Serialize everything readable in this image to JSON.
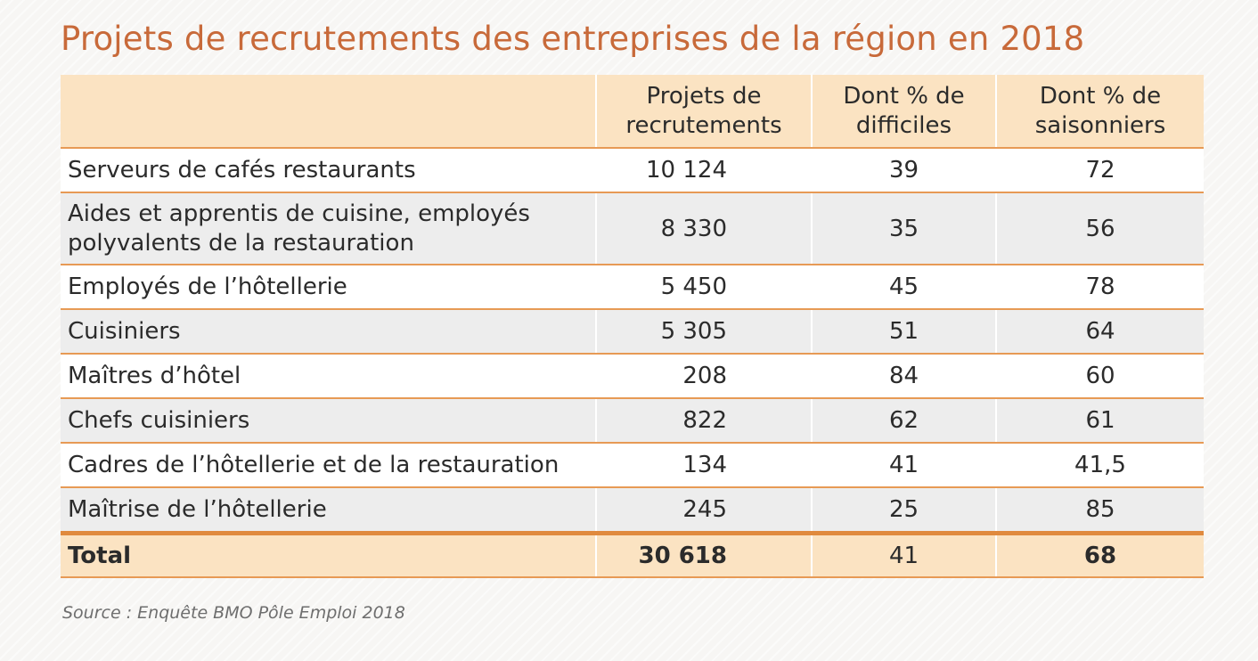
{
  "title": "Projets de recrutements des entreprises de la région en 2018",
  "table": {
    "headers": [
      "",
      "Projets de recrutements",
      "Dont % de difficiles",
      "Dont % de saisonniers"
    ],
    "rows": [
      {
        "label": "Serveurs de cafés restaurants",
        "projets": "10 124",
        "difficiles": "39",
        "saisonniers": "72"
      },
      {
        "label": "Aides et apprentis de cuisine, employés polyvalents de la restauration",
        "projets": "8 330",
        "difficiles": "35",
        "saisonniers": "56"
      },
      {
        "label": "Employés de l’hôtellerie",
        "projets": "5 450",
        "difficiles": "45",
        "saisonniers": "78"
      },
      {
        "label": "Cuisiniers",
        "projets": "5 305",
        "difficiles": "51",
        "saisonniers": "64"
      },
      {
        "label": "Maîtres d’hôtel",
        "projets": "208",
        "difficiles": "84",
        "saisonniers": "60"
      },
      {
        "label": "Chefs cuisiniers",
        "projets": "822",
        "difficiles": "62",
        "saisonniers": "61"
      },
      {
        "label": "Cadres de l’hôtellerie et de la restauration",
        "projets": "134",
        "difficiles": "41",
        "saisonniers": "41,5"
      },
      {
        "label": "Maîtrise de l’hôtellerie",
        "projets": "245",
        "difficiles": "25",
        "saisonniers": "85"
      }
    ],
    "total": {
      "label": "Total",
      "projets": "30 618",
      "difficiles": "41",
      "saisonniers": "68"
    }
  },
  "source": "Source : Enquête BMO Pôle Emploi 2018",
  "colors": {
    "title": "#c86a3a",
    "header_bg": "#fbe3c2",
    "rule": "#e79a55",
    "total_rule": "#e08a3e",
    "row_alt_bg": "#ededed"
  }
}
